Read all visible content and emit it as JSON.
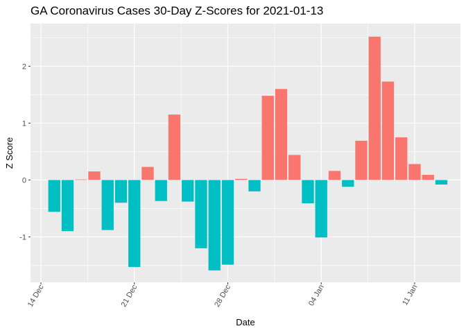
{
  "chart_data": {
    "type": "bar",
    "title": "GA Coronavirus Cases 30-Day Z-Scores for 2021-01-13",
    "xlabel": "Date",
    "ylabel": "Z Score",
    "ylim": [
      -1.8,
      2.75
    ],
    "y_ticks": [
      -1,
      0,
      1,
      2
    ],
    "x_ticks": [
      {
        "label": "14 Dec",
        "day": 0
      },
      {
        "label": "21 Dec",
        "day": 7
      },
      {
        "label": "28 Dec",
        "day": 14
      },
      {
        "label": "04 Jan",
        "day": 21
      },
      {
        "label": "11 Jan",
        "day": 28
      }
    ],
    "x_domain": [
      -0.78,
      31.43
    ],
    "colors": {
      "positive": "#F8766D",
      "negative": "#00BFC4"
    },
    "categories": [
      "2020-12-15",
      "2020-12-16",
      "2020-12-17",
      "2020-12-18",
      "2020-12-19",
      "2020-12-20",
      "2020-12-21",
      "2020-12-22",
      "2020-12-23",
      "2020-12-24",
      "2020-12-25",
      "2020-12-26",
      "2020-12-27",
      "2020-12-28",
      "2020-12-29",
      "2020-12-30",
      "2020-12-31",
      "2021-01-01",
      "2021-01-02",
      "2021-01-03",
      "2021-01-04",
      "2021-01-05",
      "2021-01-06",
      "2021-01-07",
      "2021-01-08",
      "2021-01-09",
      "2021-01-10",
      "2021-01-11",
      "2021-01-12",
      "2021-01-13"
    ],
    "days": [
      1,
      2,
      3,
      4,
      5,
      6,
      7,
      8,
      9,
      10,
      11,
      12,
      13,
      14,
      15,
      16,
      17,
      18,
      19,
      20,
      21,
      22,
      23,
      24,
      25,
      26,
      27,
      28,
      29,
      30
    ],
    "values": [
      -0.56,
      -0.9,
      0.0,
      0.15,
      -0.88,
      -0.4,
      -1.53,
      0.23,
      -0.37,
      1.15,
      -0.38,
      -1.2,
      -1.59,
      -1.49,
      0.02,
      -0.2,
      1.48,
      1.6,
      0.44,
      -0.41,
      -1.01,
      0.16,
      -0.12,
      0.69,
      2.52,
      1.73,
      0.75,
      0.28,
      0.09,
      -0.08
    ]
  }
}
